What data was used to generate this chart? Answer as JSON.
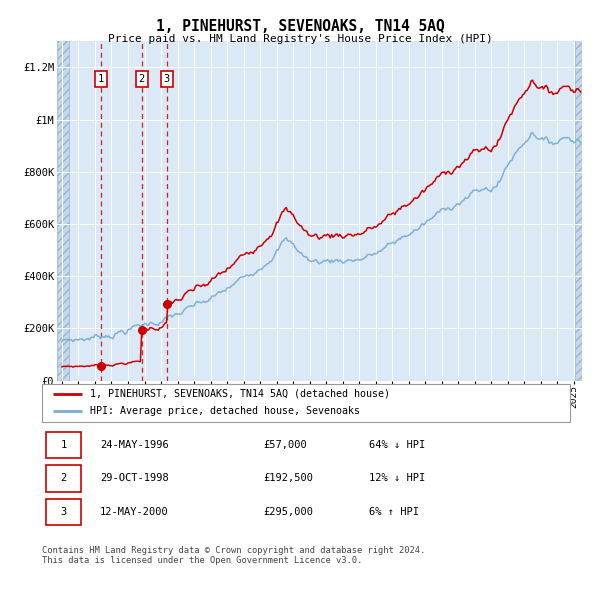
{
  "title": "1, PINEHURST, SEVENOAKS, TN14 5AQ",
  "subtitle": "Price paid vs. HM Land Registry's House Price Index (HPI)",
  "ylim": [
    0,
    1300000
  ],
  "xlim_start": 1993.7,
  "xlim_end": 2025.5,
  "hpi_color": "#7aadd4",
  "price_color": "#cc0000",
  "bg_color": "#dbe8f5",
  "purchases": [
    {
      "date_num": 1996.38,
      "price": 57000,
      "label": "1"
    },
    {
      "date_num": 1998.83,
      "price": 192500,
      "label": "2"
    },
    {
      "date_num": 2000.36,
      "price": 295000,
      "label": "3"
    }
  ],
  "legend_entries": [
    "1, PINEHURST, SEVENOAKS, TN14 5AQ (detached house)",
    "HPI: Average price, detached house, Sevenoaks"
  ],
  "table_rows": [
    {
      "num": "1",
      "date": "24-MAY-1996",
      "price": "£57,000",
      "hpi": "64% ↓ HPI"
    },
    {
      "num": "2",
      "date": "29-OCT-1998",
      "price": "£192,500",
      "hpi": "12% ↓ HPI"
    },
    {
      "num": "3",
      "date": "12-MAY-2000",
      "price": "£295,000",
      "hpi": "6% ↑ HPI"
    }
  ],
  "footer": "Contains HM Land Registry data © Crown copyright and database right 2024.\nThis data is licensed under the Open Government Licence v3.0.",
  "ytick_labels": [
    "£0",
    "£200K",
    "£400K",
    "£600K",
    "£800K",
    "£1M",
    "£1.2M"
  ],
  "ytick_values": [
    0,
    200000,
    400000,
    600000,
    800000,
    1000000,
    1200000
  ],
  "hpi_anchors_t": [
    1994,
    1995,
    1996,
    1997,
    1998,
    1999,
    2000,
    2001,
    2002,
    2003,
    2004,
    2005,
    2006,
    2007,
    2007.5,
    2008,
    2008.5,
    2009,
    2009.5,
    2010,
    2011,
    2012,
    2013,
    2014,
    2015,
    2016,
    2017,
    2018,
    2019,
    2020,
    2020.5,
    2021,
    2022,
    2022.5,
    2023,
    2023.5,
    2024,
    2024.5,
    2025
  ],
  "hpi_anchors_v": [
    150000,
    158000,
    168000,
    182000,
    198000,
    215000,
    232000,
    252000,
    278000,
    305000,
    345000,
    390000,
    445000,
    510000,
    545000,
    520000,
    490000,
    460000,
    455000,
    460000,
    465000,
    470000,
    488000,
    520000,
    562000,
    600000,
    645000,
    690000,
    720000,
    735000,
    760000,
    830000,
    920000,
    960000,
    940000,
    910000,
    920000,
    940000,
    930000
  ]
}
